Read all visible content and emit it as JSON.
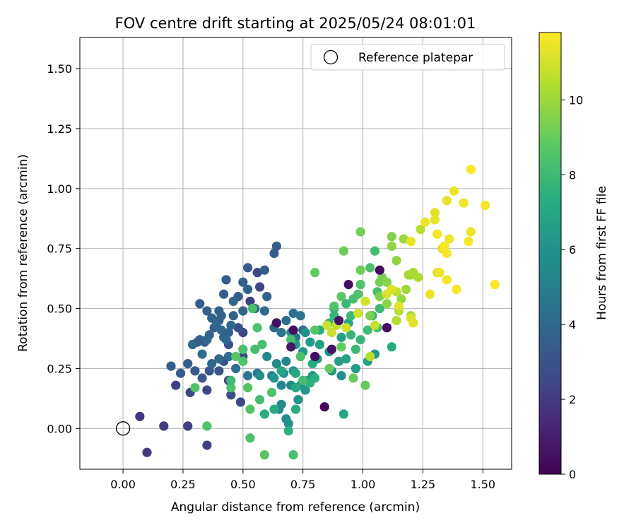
{
  "chart_data": {
    "type": "scatter",
    "title": "FOV centre drift starting at 2025/05/24 08:01:01",
    "xlabel": "Angular distance from reference (arcmin)",
    "ylabel": "Rotation from reference (arcmin)",
    "xlim": [
      -0.18,
      1.62
    ],
    "ylim": [
      -0.17,
      1.63
    ],
    "xticks": [
      "0.00",
      "0.25",
      "0.50",
      "0.75",
      "1.00",
      "1.25",
      "1.50"
    ],
    "yticks": [
      "0.00",
      "0.25",
      "0.50",
      "0.75",
      "1.00",
      "1.25",
      "1.50"
    ],
    "grid": true,
    "legend": {
      "placement": "upper-right",
      "label": "Reference platepar"
    },
    "reference_point": {
      "x": 0.0,
      "y": 0.0
    },
    "colorbar": {
      "label": "Hours from first FF file",
      "colormap": "viridis",
      "range": [
        0,
        11.8
      ],
      "ticks": [
        "0",
        "2",
        "4",
        "6",
        "8",
        "10"
      ]
    },
    "points": [
      {
        "x": 0.07,
        "y": 0.05,
        "h": 1.9
      },
      {
        "x": 0.1,
        "y": -0.1,
        "h": 2.0
      },
      {
        "x": 0.17,
        "y": 0.01,
        "h": 2.1
      },
      {
        "x": 0.27,
        "y": 0.01,
        "h": 2.2
      },
      {
        "x": 0.35,
        "y": -0.07,
        "h": 2.3
      },
      {
        "x": 0.22,
        "y": 0.18,
        "h": 2.4
      },
      {
        "x": 0.28,
        "y": 0.15,
        "h": 2.5
      },
      {
        "x": 0.35,
        "y": 0.16,
        "h": 2.6
      },
      {
        "x": 0.44,
        "y": 0.2,
        "h": 2.7
      },
      {
        "x": 0.45,
        "y": 0.14,
        "h": 2.8
      },
      {
        "x": 0.49,
        "y": 0.11,
        "h": 2.6
      },
      {
        "x": 0.5,
        "y": 0.4,
        "h": 2.5
      },
      {
        "x": 0.53,
        "y": 0.53,
        "h": 2.4
      },
      {
        "x": 0.56,
        "y": 0.65,
        "h": 2.6
      },
      {
        "x": 0.57,
        "y": 0.59,
        "h": 2.5
      },
      {
        "x": 0.5,
        "y": 0.3,
        "h": 2.6
      },
      {
        "x": 0.48,
        "y": 0.42,
        "h": 2.8
      },
      {
        "x": 0.44,
        "y": 0.35,
        "h": 2.9
      },
      {
        "x": 0.42,
        "y": 0.28,
        "h": 3.0
      },
      {
        "x": 0.4,
        "y": 0.24,
        "h": 3.1
      },
      {
        "x": 0.36,
        "y": 0.24,
        "h": 3.2
      },
      {
        "x": 0.33,
        "y": 0.21,
        "h": 3.3
      },
      {
        "x": 0.3,
        "y": 0.24,
        "h": 3.4
      },
      {
        "x": 0.27,
        "y": 0.27,
        "h": 3.5
      },
      {
        "x": 0.24,
        "y": 0.23,
        "h": 3.4
      },
      {
        "x": 0.2,
        "y": 0.26,
        "h": 3.6
      },
      {
        "x": 0.31,
        "y": 0.36,
        "h": 3.5
      },
      {
        "x": 0.32,
        "y": 0.37,
        "h": 3.6
      },
      {
        "x": 0.34,
        "y": 0.36,
        "h": 3.4
      },
      {
        "x": 0.36,
        "y": 0.39,
        "h": 3.7
      },
      {
        "x": 0.38,
        "y": 0.42,
        "h": 3.5
      },
      {
        "x": 0.4,
        "y": 0.45,
        "h": 3.6
      },
      {
        "x": 0.42,
        "y": 0.38,
        "h": 3.8
      },
      {
        "x": 0.44,
        "y": 0.4,
        "h": 3.7
      },
      {
        "x": 0.46,
        "y": 0.47,
        "h": 3.6
      },
      {
        "x": 0.48,
        "y": 0.55,
        "h": 3.5
      },
      {
        "x": 0.5,
        "y": 0.49,
        "h": 3.9
      },
      {
        "x": 0.52,
        "y": 0.58,
        "h": 3.7
      },
      {
        "x": 0.52,
        "y": 0.67,
        "h": 3.4
      },
      {
        "x": 0.59,
        "y": 0.66,
        "h": 3.5
      },
      {
        "x": 0.63,
        "y": 0.73,
        "h": 3.6
      },
      {
        "x": 0.64,
        "y": 0.76,
        "h": 3.5
      },
      {
        "x": 0.43,
        "y": 0.62,
        "h": 3.4
      },
      {
        "x": 0.42,
        "y": 0.56,
        "h": 3.6
      },
      {
        "x": 0.4,
        "y": 0.49,
        "h": 3.8
      },
      {
        "x": 0.35,
        "y": 0.49,
        "h": 3.7
      },
      {
        "x": 0.32,
        "y": 0.52,
        "h": 3.5
      },
      {
        "x": 0.37,
        "y": 0.46,
        "h": 3.8
      },
      {
        "x": 0.39,
        "y": 0.44,
        "h": 3.9
      },
      {
        "x": 0.41,
        "y": 0.41,
        "h": 3.9
      },
      {
        "x": 0.43,
        "y": 0.37,
        "h": 4.0
      },
      {
        "x": 0.45,
        "y": 0.43,
        "h": 4.0
      },
      {
        "x": 0.46,
        "y": 0.53,
        "h": 3.9
      },
      {
        "x": 0.5,
        "y": 0.61,
        "h": 3.7
      },
      {
        "x": 0.55,
        "y": 0.5,
        "h": 4.0
      },
      {
        "x": 0.59,
        "y": 0.49,
        "h": 4.1
      },
      {
        "x": 0.6,
        "y": 0.55,
        "h": 3.8
      },
      {
        "x": 0.63,
        "y": 0.42,
        "h": 4.1
      },
      {
        "x": 0.64,
        "y": 0.44,
        "h": 4.2
      },
      {
        "x": 0.68,
        "y": 0.45,
        "h": 4.3
      },
      {
        "x": 0.71,
        "y": 0.48,
        "h": 4.4
      },
      {
        "x": 0.74,
        "y": 0.47,
        "h": 4.5
      },
      {
        "x": 0.75,
        "y": 0.41,
        "h": 4.4
      },
      {
        "x": 0.72,
        "y": 0.38,
        "h": 4.6
      },
      {
        "x": 0.66,
        "y": 0.4,
        "h": 4.5
      },
      {
        "x": 0.56,
        "y": 0.23,
        "h": 4.5
      },
      {
        "x": 0.52,
        "y": 0.22,
        "h": 4.6
      },
      {
        "x": 0.47,
        "y": 0.25,
        "h": 4.3
      },
      {
        "x": 0.44,
        "y": 0.3,
        "h": 4.2
      },
      {
        "x": 0.4,
        "y": 0.29,
        "h": 4.1
      },
      {
        "x": 0.37,
        "y": 0.27,
        "h": 4.0
      },
      {
        "x": 0.33,
        "y": 0.31,
        "h": 4.2
      },
      {
        "x": 0.29,
        "y": 0.35,
        "h": 3.9
      },
      {
        "x": 0.35,
        "y": 0.37,
        "h": 4.0
      },
      {
        "x": 0.41,
        "y": 0.47,
        "h": 3.8
      },
      {
        "x": 0.62,
        "y": 0.22,
        "h": 5.3
      },
      {
        "x": 0.66,
        "y": 0.18,
        "h": 5.5
      },
      {
        "x": 0.66,
        "y": 0.1,
        "h": 5.6
      },
      {
        "x": 0.68,
        "y": 0.04,
        "h": 5.8
      },
      {
        "x": 0.69,
        "y": 0.02,
        "h": 5.9
      },
      {
        "x": 0.65,
        "y": 0.08,
        "h": 5.7
      },
      {
        "x": 0.7,
        "y": 0.18,
        "h": 5.6
      },
      {
        "x": 0.68,
        "y": 0.28,
        "h": 5.4
      },
      {
        "x": 0.64,
        "y": 0.27,
        "h": 5.5
      },
      {
        "x": 0.6,
        "y": 0.3,
        "h": 5.4
      },
      {
        "x": 0.57,
        "y": 0.22,
        "h": 5.8
      },
      {
        "x": 0.63,
        "y": 0.21,
        "h": 5.9
      },
      {
        "x": 0.67,
        "y": 0.23,
        "h": 6.0
      },
      {
        "x": 0.71,
        "y": 0.24,
        "h": 6.1
      },
      {
        "x": 0.74,
        "y": 0.18,
        "h": 6.0
      },
      {
        "x": 0.76,
        "y": 0.16,
        "h": 6.2
      },
      {
        "x": 0.73,
        "y": 0.12,
        "h": 6.1
      },
      {
        "x": 0.77,
        "y": 0.2,
        "h": 6.3
      },
      {
        "x": 0.79,
        "y": 0.22,
        "h": 6.5
      },
      {
        "x": 0.81,
        "y": 0.29,
        "h": 6.4
      },
      {
        "x": 0.82,
        "y": 0.35,
        "h": 6.6
      },
      {
        "x": 0.75,
        "y": 0.32,
        "h": 6.2
      },
      {
        "x": 0.72,
        "y": 0.35,
        "h": 6.4
      },
      {
        "x": 0.7,
        "y": 0.4,
        "h": 6.1
      },
      {
        "x": 0.76,
        "y": 0.4,
        "h": 5.9
      },
      {
        "x": 0.78,
        "y": 0.36,
        "h": 6.3
      },
      {
        "x": 0.86,
        "y": 0.32,
        "h": 6.0
      },
      {
        "x": 0.87,
        "y": 0.24,
        "h": 6.2
      },
      {
        "x": 0.91,
        "y": 0.22,
        "h": 5.8
      },
      {
        "x": 0.9,
        "y": 0.28,
        "h": 6.6
      },
      {
        "x": 0.93,
        "y": 0.29,
        "h": 6.8
      },
      {
        "x": 0.91,
        "y": 0.38,
        "h": 6.7
      },
      {
        "x": 0.94,
        "y": 0.44,
        "h": 6.9
      },
      {
        "x": 0.97,
        "y": 0.25,
        "h": 6.5
      },
      {
        "x": 1.02,
        "y": 0.28,
        "h": 6.8
      },
      {
        "x": 1.05,
        "y": 0.31,
        "h": 6.3
      },
      {
        "x": 1.12,
        "y": 0.34,
        "h": 7.3
      },
      {
        "x": 0.92,
        "y": 0.06,
        "h": 7.0
      },
      {
        "x": 0.72,
        "y": 0.17,
        "h": 7.2
      },
      {
        "x": 0.72,
        "y": 0.23,
        "h": 7.1
      },
      {
        "x": 0.66,
        "y": 0.24,
        "h": 7.0
      },
      {
        "x": 0.63,
        "y": 0.08,
        "h": 7.3
      },
      {
        "x": 0.59,
        "y": 0.06,
        "h": 7.4
      },
      {
        "x": 0.69,
        "y": -0.01,
        "h": 7.5
      },
      {
        "x": 0.72,
        "y": 0.08,
        "h": 7.3
      },
      {
        "x": 0.78,
        "y": 0.19,
        "h": 7.6
      },
      {
        "x": 0.8,
        "y": 0.21,
        "h": 7.5
      },
      {
        "x": 0.82,
        "y": 0.41,
        "h": 7.4
      },
      {
        "x": 0.79,
        "y": 0.27,
        "h": 7.2
      },
      {
        "x": 0.86,
        "y": 0.44,
        "h": 7.7
      },
      {
        "x": 0.88,
        "y": 0.47,
        "h": 7.8
      },
      {
        "x": 0.88,
        "y": 0.5,
        "h": 7.6
      },
      {
        "x": 0.93,
        "y": 0.52,
        "h": 7.9
      },
      {
        "x": 0.95,
        "y": 0.47,
        "h": 8.0
      },
      {
        "x": 0.95,
        "y": 0.39,
        "h": 7.8
      },
      {
        "x": 0.97,
        "y": 0.33,
        "h": 8.0
      },
      {
        "x": 0.99,
        "y": 0.37,
        "h": 7.9
      },
      {
        "x": 1.02,
        "y": 0.41,
        "h": 8.1
      },
      {
        "x": 1.04,
        "y": 0.47,
        "h": 7.9
      },
      {
        "x": 1.06,
        "y": 0.42,
        "h": 8.2
      },
      {
        "x": 1.07,
        "y": 0.5,
        "h": 8.1
      },
      {
        "x": 1.06,
        "y": 0.57,
        "h": 8.3
      },
      {
        "x": 1.05,
        "y": 0.74,
        "h": 8.2
      },
      {
        "x": 1.03,
        "y": 0.67,
        "h": 8.4
      },
      {
        "x": 0.99,
        "y": 0.6,
        "h": 8.5
      },
      {
        "x": 0.98,
        "y": 0.56,
        "h": 8.6
      },
      {
        "x": 0.96,
        "y": 0.54,
        "h": 8.3
      },
      {
        "x": 0.91,
        "y": 0.55,
        "h": 8.8
      },
      {
        "x": 0.88,
        "y": 0.51,
        "h": 8.6
      },
      {
        "x": 0.8,
        "y": 0.41,
        "h": 8.7
      },
      {
        "x": 0.74,
        "y": 0.3,
        "h": 8.4
      },
      {
        "x": 0.75,
        "y": 0.2,
        "h": 8.2
      },
      {
        "x": 0.7,
        "y": 0.37,
        "h": 8.3
      },
      {
        "x": 0.62,
        "y": 0.15,
        "h": 8.5
      },
      {
        "x": 0.57,
        "y": 0.12,
        "h": 8.2
      },
      {
        "x": 0.53,
        "y": 0.08,
        "h": 8.6
      },
      {
        "x": 0.53,
        "y": -0.04,
        "h": 8.4
      },
      {
        "x": 0.59,
        "y": -0.11,
        "h": 8.7
      },
      {
        "x": 0.71,
        "y": -0.11,
        "h": 8.3
      },
      {
        "x": 0.35,
        "y": 0.01,
        "h": 8.5
      },
      {
        "x": 0.3,
        "y": 0.17,
        "h": 8.6
      },
      {
        "x": 0.45,
        "y": 0.17,
        "h": 8.4
      },
      {
        "x": 0.45,
        "y": 0.2,
        "h": 8.1
      },
      {
        "x": 0.47,
        "y": 0.3,
        "h": 8.7
      },
      {
        "x": 0.5,
        "y": 0.33,
        "h": 8.4
      },
      {
        "x": 0.5,
        "y": 0.28,
        "h": 8.5
      },
      {
        "x": 0.52,
        "y": 0.17,
        "h": 8.6
      },
      {
        "x": 0.54,
        "y": 0.5,
        "h": 8.3
      },
      {
        "x": 0.55,
        "y": 0.33,
        "h": 8.2
      },
      {
        "x": 0.56,
        "y": 0.42,
        "h": 8.5
      },
      {
        "x": 0.58,
        "y": 0.35,
        "h": 8.3
      },
      {
        "x": 0.8,
        "y": 0.65,
        "h": 8.9
      },
      {
        "x": 0.86,
        "y": 0.25,
        "h": 9.0
      },
      {
        "x": 0.92,
        "y": 0.74,
        "h": 9.2
      },
      {
        "x": 0.91,
        "y": 0.34,
        "h": 9.0
      },
      {
        "x": 0.96,
        "y": 0.21,
        "h": 9.1
      },
      {
        "x": 0.99,
        "y": 0.82,
        "h": 9.3
      },
      {
        "x": 0.99,
        "y": 0.66,
        "h": 9.2
      },
      {
        "x": 1.01,
        "y": 0.18,
        "h": 9.0
      },
      {
        "x": 1.03,
        "y": 0.47,
        "h": 9.4
      },
      {
        "x": 1.07,
        "y": 0.55,
        "h": 9.5
      },
      {
        "x": 1.07,
        "y": 0.61,
        "h": 9.3
      },
      {
        "x": 1.08,
        "y": 0.63,
        "h": 9.4
      },
      {
        "x": 1.1,
        "y": 0.61,
        "h": 9.6
      },
      {
        "x": 1.1,
        "y": 0.52,
        "h": 9.7
      },
      {
        "x": 1.12,
        "y": 0.76,
        "h": 9.8
      },
      {
        "x": 1.12,
        "y": 0.8,
        "h": 9.6
      },
      {
        "x": 1.14,
        "y": 0.7,
        "h": 9.8
      },
      {
        "x": 1.16,
        "y": 0.54,
        "h": 9.9
      },
      {
        "x": 1.17,
        "y": 0.79,
        "h": 10.0
      },
      {
        "x": 1.18,
        "y": 0.58,
        "h": 10.1
      },
      {
        "x": 1.2,
        "y": 0.64,
        "h": 10.0
      },
      {
        "x": 1.19,
        "y": 0.64,
        "h": 10.2
      },
      {
        "x": 1.21,
        "y": 0.65,
        "h": 10.3
      },
      {
        "x": 1.23,
        "y": 0.63,
        "h": 10.4
      },
      {
        "x": 1.2,
        "y": 0.47,
        "h": 10.2
      },
      {
        "x": 1.24,
        "y": 0.83,
        "h": 10.5
      },
      {
        "x": 1.15,
        "y": 0.49,
        "h": 10.6
      },
      {
        "x": 1.14,
        "y": 0.45,
        "h": 10.5
      },
      {
        "x": 1.14,
        "y": 0.57,
        "h": 10.7
      },
      {
        "x": 1.05,
        "y": 0.43,
        "h": 10.8
      },
      {
        "x": 1.03,
        "y": 0.3,
        "h": 10.6
      },
      {
        "x": 0.98,
        "y": 0.48,
        "h": 11.0
      },
      {
        "x": 0.85,
        "y": 0.43,
        "h": 10.8
      },
      {
        "x": 0.87,
        "y": 0.4,
        "h": 10.9
      },
      {
        "x": 0.89,
        "y": 0.43,
        "h": 10.7
      },
      {
        "x": 0.93,
        "y": 0.42,
        "h": 11.0
      },
      {
        "x": 1.01,
        "y": 0.53,
        "h": 11.0
      },
      {
        "x": 1.1,
        "y": 0.56,
        "h": 11.1
      },
      {
        "x": 1.12,
        "y": 0.58,
        "h": 11.2
      },
      {
        "x": 1.15,
        "y": 0.51,
        "h": 11.3
      },
      {
        "x": 1.2,
        "y": 0.46,
        "h": 11.2
      },
      {
        "x": 1.21,
        "y": 0.44,
        "h": 11.3
      },
      {
        "x": 1.2,
        "y": 0.78,
        "h": 11.4
      },
      {
        "x": 1.26,
        "y": 0.86,
        "h": 11.5
      },
      {
        "x": 1.28,
        "y": 0.56,
        "h": 11.5
      },
      {
        "x": 1.3,
        "y": 0.87,
        "h": 11.4
      },
      {
        "x": 1.3,
        "y": 0.9,
        "h": 11.3
      },
      {
        "x": 1.31,
        "y": 0.81,
        "h": 11.6
      },
      {
        "x": 1.31,
        "y": 0.65,
        "h": 11.2
      },
      {
        "x": 1.32,
        "y": 0.65,
        "h": 11.5
      },
      {
        "x": 1.33,
        "y": 0.75,
        "h": 11.4
      },
      {
        "x": 1.34,
        "y": 0.76,
        "h": 11.6
      },
      {
        "x": 1.35,
        "y": 0.73,
        "h": 11.7
      },
      {
        "x": 1.35,
        "y": 0.95,
        "h": 11.4
      },
      {
        "x": 1.36,
        "y": 0.79,
        "h": 11.5
      },
      {
        "x": 1.35,
        "y": 0.62,
        "h": 11.6
      },
      {
        "x": 1.38,
        "y": 0.99,
        "h": 11.5
      },
      {
        "x": 1.39,
        "y": 0.58,
        "h": 11.7
      },
      {
        "x": 1.42,
        "y": 0.94,
        "h": 11.6
      },
      {
        "x": 1.44,
        "y": 0.78,
        "h": 11.7
      },
      {
        "x": 1.45,
        "y": 0.82,
        "h": 11.5
      },
      {
        "x": 1.45,
        "y": 1.08,
        "h": 11.8
      },
      {
        "x": 1.51,
        "y": 0.93,
        "h": 11.7
      },
      {
        "x": 1.55,
        "y": 0.6,
        "h": 11.8
      },
      {
        "x": 1.07,
        "y": 0.66,
        "h": 0.3
      },
      {
        "x": 1.1,
        "y": 0.42,
        "h": 0.4
      },
      {
        "x": 0.94,
        "y": 0.6,
        "h": 0.5
      },
      {
        "x": 0.9,
        "y": 0.45,
        "h": 0.6
      },
      {
        "x": 0.87,
        "y": 0.33,
        "h": 0.7
      },
      {
        "x": 0.84,
        "y": 0.09,
        "h": 0.2
      },
      {
        "x": 0.8,
        "y": 0.3,
        "h": 0.4
      },
      {
        "x": 0.71,
        "y": 0.41,
        "h": 0.5
      },
      {
        "x": 0.7,
        "y": 0.34,
        "h": 0.8
      },
      {
        "x": 0.64,
        "y": 0.44,
        "h": 0.6
      }
    ]
  }
}
